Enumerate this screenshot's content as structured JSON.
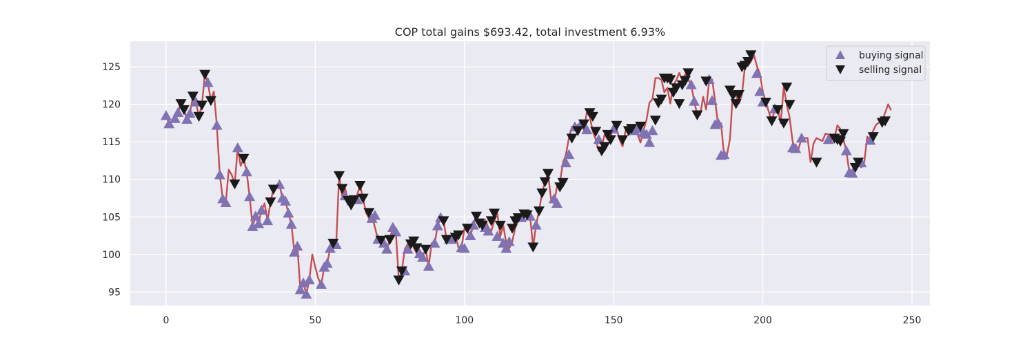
{
  "chart_data": {
    "type": "line",
    "title": "COP total gains $693.42, total investment 6.93%",
    "xlabel": "",
    "ylabel": "",
    "xlim": [
      -12,
      256
    ],
    "ylim": [
      93.2,
      128.4
    ],
    "x_ticks": [
      0,
      50,
      100,
      150,
      200,
      250
    ],
    "y_ticks": [
      95,
      100,
      105,
      110,
      115,
      120,
      125
    ],
    "grid": true,
    "legend_position": "top-right",
    "colors": {
      "plot_background": "#eaeaf2",
      "grid": "#ffffff",
      "price_line": "#c44e52",
      "buy_marker": "#8172b2",
      "sell_marker": "#1a1a1a"
    },
    "price_series": {
      "x_start": 0,
      "x_step": 1,
      "values": [
        118.5,
        117.4,
        117.8,
        118.1,
        118.9,
        120.1,
        119.3,
        118.0,
        118.8,
        121.1,
        120.3,
        118.4,
        119.9,
        124.0,
        122.9,
        120.5,
        121.7,
        117.2,
        110.6,
        107.4,
        106.9,
        111.3,
        110.6,
        109.4,
        114.2,
        111.8,
        112.8,
        111.0,
        107.7,
        103.7,
        105.1,
        104.1,
        105.9,
        106.8,
        104.5,
        107.0,
        108.7,
        108.9,
        109.3,
        107.5,
        107.1,
        105.5,
        104.0,
        100.3,
        101.1,
        95.3,
        96.2,
        94.7,
        96.6,
        100.0,
        98.3,
        96.8,
        96.0,
        98.3,
        98.8,
        100.8,
        101.5,
        101.3,
        110.5,
        107.8,
        108.8,
        107.2,
        106.6,
        107.3,
        107.9,
        109.2,
        107.5,
        105.6,
        104.8,
        105.2,
        103.6,
        102.0,
        101.9,
        101.5,
        100.7,
        102.0,
        103.6,
        103.0,
        96.6,
        97.8,
        100.7,
        101.4,
        101.8,
        100.9,
        100.1,
        99.6,
        99.8,
        100.7,
        98.4,
        101.5,
        101.4,
        103.8,
        104.9,
        104.5,
        102.0,
        102.0,
        102.3,
        102.6,
        100.9,
        100.8,
        103.5,
        103.0,
        102.5,
        103.9,
        105.1,
        104.2,
        103.9,
        104.6,
        103.6,
        103.1,
        104.5,
        105.5,
        102.4,
        103.9,
        101.5,
        100.8,
        101.7,
        103.5,
        104.5,
        104.9,
        105.4,
        105.3,
        105.1,
        101.0,
        103.9,
        105.8,
        108.2,
        109.7,
        110.8,
        107.4,
        106.8,
        109.0,
        109.6,
        112.2,
        113.3,
        115.5,
        117.0,
        116.5,
        117.3,
        117.4,
        116.6,
        118.9,
        118.4,
        116.4,
        115.3,
        113.8,
        114.4,
        116.0,
        115.3,
        115.6,
        117.2,
        116.7,
        115.3,
        114.4,
        116.5,
        116.8,
        117.1,
        116.2,
        116.0,
        114.9,
        116.5,
        117.9,
        120.2,
        120.7,
        123.5,
        123.5,
        123.3,
        121.6,
        122.2,
        120.1,
        122.6,
        123.2,
        124.2,
        123.2,
        124.0,
        123.3,
        122.6,
        120.4,
        118.6,
        118.6,
        121.0,
        119.3,
        123.1,
        123.3,
        120.5,
        117.3,
        117.5,
        113.2,
        113.3,
        115.4,
        121.9,
        121.2,
        120.1,
        121.3,
        125.0,
        125.2,
        125.7,
        126.6,
        125.1,
        124.1,
        121.7,
        120.3,
        119.0,
        117.8,
        119.3,
        119.4,
        117.5,
        122.3,
        120.0,
        118.2,
        115.0,
        114.2,
        114.1,
        115.5,
        115.5,
        115.5,
        112.3,
        114.8,
        115.5,
        115.3,
        115.1,
        116.1,
        116.0,
        115.3,
        115.6,
        117.2,
        116.7,
        115.3,
        113.8,
        110.9,
        110.8,
        112.0,
        112.2,
        111.6,
        112.3,
        115.7,
        115.2,
        116.5,
        117.3,
        117.6,
        117.8,
        118.9,
        120.0,
        119.2
      ]
    },
    "series": [
      {
        "name": "buying signal",
        "marker": "triangle-up",
        "points": [
          [
            0,
            118.5
          ],
          [
            1,
            117.4
          ],
          [
            3,
            118.1
          ],
          [
            4,
            118.9
          ],
          [
            7,
            118.0
          ],
          [
            8,
            118.8
          ],
          [
            10,
            120.3
          ],
          [
            14,
            122.9
          ],
          [
            17,
            117.2
          ],
          [
            18,
            110.6
          ],
          [
            19,
            107.4
          ],
          [
            20,
            106.9
          ],
          [
            24,
            114.2
          ],
          [
            27,
            111.0
          ],
          [
            28,
            107.7
          ],
          [
            29,
            103.7
          ],
          [
            30,
            105.1
          ],
          [
            31,
            104.1
          ],
          [
            32,
            105.9
          ],
          [
            34,
            104.5
          ],
          [
            38,
            109.3
          ],
          [
            39,
            107.5
          ],
          [
            40,
            107.1
          ],
          [
            41,
            105.5
          ],
          [
            42,
            104.0
          ],
          [
            43,
            100.3
          ],
          [
            44,
            101.1
          ],
          [
            45,
            95.3
          ],
          [
            46,
            96.2
          ],
          [
            47,
            94.7
          ],
          [
            48,
            96.6
          ],
          [
            52,
            96.0
          ],
          [
            53,
            98.3
          ],
          [
            54,
            98.8
          ],
          [
            55,
            100.8
          ],
          [
            57,
            101.3
          ],
          [
            60,
            107.8
          ],
          [
            64,
            107.3
          ],
          [
            69,
            104.8
          ],
          [
            70,
            105.2
          ],
          [
            71,
            102.0
          ],
          [
            73,
            101.5
          ],
          [
            74,
            100.7
          ],
          [
            76,
            103.6
          ],
          [
            77,
            103.0
          ],
          [
            80,
            97.8
          ],
          [
            81,
            100.7
          ],
          [
            85,
            100.1
          ],
          [
            86,
            99.6
          ],
          [
            88,
            98.4
          ],
          [
            90,
            101.5
          ],
          [
            91,
            103.8
          ],
          [
            92,
            104.9
          ],
          [
            95,
            102.0
          ],
          [
            96,
            102.0
          ],
          [
            99,
            100.9
          ],
          [
            100,
            100.8
          ],
          [
            102,
            102.5
          ],
          [
            103,
            103.9
          ],
          [
            107,
            103.6
          ],
          [
            108,
            103.1
          ],
          [
            111,
            102.4
          ],
          [
            113,
            101.5
          ],
          [
            114,
            100.8
          ],
          [
            115,
            101.7
          ],
          [
            119,
            104.9
          ],
          [
            122,
            105.1
          ],
          [
            124,
            103.9
          ],
          [
            130,
            107.4
          ],
          [
            131,
            106.8
          ],
          [
            134,
            112.2
          ],
          [
            135,
            113.3
          ],
          [
            137,
            117.0
          ],
          [
            139,
            117.3
          ],
          [
            141,
            116.6
          ],
          [
            145,
            115.3
          ],
          [
            150,
            116.7
          ],
          [
            157,
            116.5
          ],
          [
            158,
            116.8
          ],
          [
            160,
            116.2
          ],
          [
            161,
            116.0
          ],
          [
            162,
            114.9
          ],
          [
            163,
            116.5
          ],
          [
            176,
            122.6
          ],
          [
            177,
            120.4
          ],
          [
            182,
            123.3
          ],
          [
            183,
            120.5
          ],
          [
            184,
            117.3
          ],
          [
            185,
            117.5
          ],
          [
            186,
            113.2
          ],
          [
            187,
            113.3
          ],
          [
            198,
            124.1
          ],
          [
            199,
            121.7
          ],
          [
            200,
            120.3
          ],
          [
            204,
            119.4
          ],
          [
            210,
            114.2
          ],
          [
            211,
            114.1
          ],
          [
            213,
            115.5
          ],
          [
            222,
            115.3
          ],
          [
            228,
            113.8
          ],
          [
            229,
            110.9
          ],
          [
            230,
            110.8
          ],
          [
            233,
            112.2
          ],
          [
            236,
            115.2
          ]
        ]
      },
      {
        "name": "selling signal",
        "marker": "triangle-down",
        "points": [
          [
            5,
            120.1
          ],
          [
            6,
            119.3
          ],
          [
            9,
            121.1
          ],
          [
            11,
            118.4
          ],
          [
            12,
            119.9
          ],
          [
            13,
            124.0
          ],
          [
            15,
            120.5
          ],
          [
            23,
            109.4
          ],
          [
            26,
            112.8
          ],
          [
            35,
            107.0
          ],
          [
            36,
            108.7
          ],
          [
            56,
            101.5
          ],
          [
            58,
            110.5
          ],
          [
            59,
            108.8
          ],
          [
            61,
            107.2
          ],
          [
            62,
            106.6
          ],
          [
            63,
            107.3
          ],
          [
            65,
            109.2
          ],
          [
            66,
            107.5
          ],
          [
            68,
            105.6
          ],
          [
            72,
            101.9
          ],
          [
            75,
            102.0
          ],
          [
            78,
            96.6
          ],
          [
            79,
            97.8
          ],
          [
            82,
            101.4
          ],
          [
            83,
            101.8
          ],
          [
            84,
            100.9
          ],
          [
            87,
            100.7
          ],
          [
            93,
            104.5
          ],
          [
            94,
            102.0
          ],
          [
            97,
            102.3
          ],
          [
            98,
            102.6
          ],
          [
            101,
            103.5
          ],
          [
            104,
            105.1
          ],
          [
            105,
            104.2
          ],
          [
            106,
            103.9
          ],
          [
            109,
            104.5
          ],
          [
            110,
            105.5
          ],
          [
            112,
            103.9
          ],
          [
            116,
            103.5
          ],
          [
            117,
            104.5
          ],
          [
            118,
            104.9
          ],
          [
            120,
            105.4
          ],
          [
            121,
            105.3
          ],
          [
            123,
            101.0
          ],
          [
            125,
            105.8
          ],
          [
            126,
            108.2
          ],
          [
            127,
            109.7
          ],
          [
            128,
            110.8
          ],
          [
            132,
            109.0
          ],
          [
            133,
            109.6
          ],
          [
            136,
            115.5
          ],
          [
            138,
            116.5
          ],
          [
            140,
            117.4
          ],
          [
            142,
            118.9
          ],
          [
            143,
            118.4
          ],
          [
            144,
            116.4
          ],
          [
            146,
            113.8
          ],
          [
            147,
            114.4
          ],
          [
            148,
            116.0
          ],
          [
            149,
            115.3
          ],
          [
            151,
            117.2
          ],
          [
            153,
            115.3
          ],
          [
            155,
            116.5
          ],
          [
            156,
            116.8
          ],
          [
            159,
            117.1
          ],
          [
            164,
            117.9
          ],
          [
            165,
            120.2
          ],
          [
            166,
            120.7
          ],
          [
            167,
            123.5
          ],
          [
            168,
            123.5
          ],
          [
            169,
            123.3
          ],
          [
            170,
            121.6
          ],
          [
            171,
            122.2
          ],
          [
            172,
            120.1
          ],
          [
            173,
            122.6
          ],
          [
            174,
            123.2
          ],
          [
            175,
            124.2
          ],
          [
            178,
            118.6
          ],
          [
            181,
            123.1
          ],
          [
            189,
            121.9
          ],
          [
            190,
            121.2
          ],
          [
            191,
            120.1
          ],
          [
            192,
            121.3
          ],
          [
            193,
            125.0
          ],
          [
            194,
            125.2
          ],
          [
            195,
            125.7
          ],
          [
            196,
            126.6
          ],
          [
            201,
            120.3
          ],
          [
            203,
            117.8
          ],
          [
            205,
            119.3
          ],
          [
            207,
            117.5
          ],
          [
            208,
            122.3
          ],
          [
            209,
            120.0
          ],
          [
            218,
            112.3
          ],
          [
            224,
            115.5
          ],
          [
            225,
            115.3
          ],
          [
            226,
            115.1
          ],
          [
            227,
            116.1
          ],
          [
            231,
            111.6
          ],
          [
            232,
            112.3
          ],
          [
            237,
            115.7
          ],
          [
            240,
            117.6
          ],
          [
            241,
            117.8
          ]
        ]
      }
    ]
  }
}
